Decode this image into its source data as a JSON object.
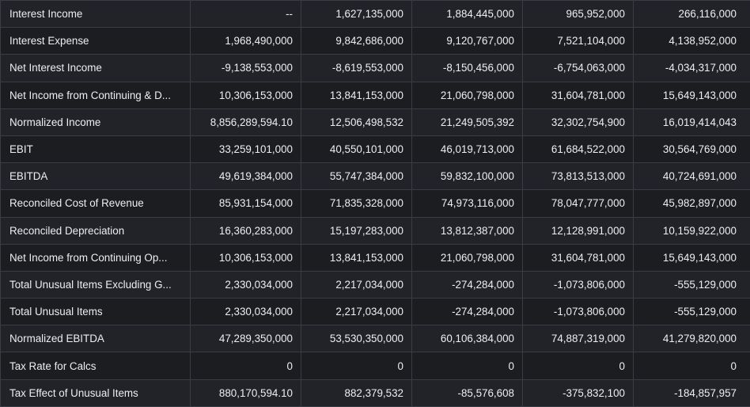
{
  "table": {
    "rows": [
      {
        "label": "Interest Income",
        "values": [
          "--",
          "1,627,135,000",
          "1,884,445,000",
          "965,952,000",
          "266,116,000"
        ]
      },
      {
        "label": "Interest Expense",
        "values": [
          "1,968,490,000",
          "9,842,686,000",
          "9,120,767,000",
          "7,521,104,000",
          "4,138,952,000"
        ]
      },
      {
        "label": "Net Interest Income",
        "values": [
          "-9,138,553,000",
          "-8,619,553,000",
          "-8,150,456,000",
          "-6,754,063,000",
          "-4,034,317,000"
        ]
      },
      {
        "label": "Net Income from Continuing & D...",
        "values": [
          "10,306,153,000",
          "13,841,153,000",
          "21,060,798,000",
          "31,604,781,000",
          "15,649,143,000"
        ]
      },
      {
        "label": "Normalized Income",
        "values": [
          "8,856,289,594.10",
          "12,506,498,532",
          "21,249,505,392",
          "32,302,754,900",
          "16,019,414,043"
        ]
      },
      {
        "label": "EBIT",
        "values": [
          "33,259,101,000",
          "40,550,101,000",
          "46,019,713,000",
          "61,684,522,000",
          "30,564,769,000"
        ]
      },
      {
        "label": "EBITDA",
        "values": [
          "49,619,384,000",
          "55,747,384,000",
          "59,832,100,000",
          "73,813,513,000",
          "40,724,691,000"
        ]
      },
      {
        "label": "Reconciled Cost of Revenue",
        "values": [
          "85,931,154,000",
          "71,835,328,000",
          "74,973,116,000",
          "78,047,777,000",
          "45,982,897,000"
        ]
      },
      {
        "label": "Reconciled Depreciation",
        "values": [
          "16,360,283,000",
          "15,197,283,000",
          "13,812,387,000",
          "12,128,991,000",
          "10,159,922,000"
        ]
      },
      {
        "label": "Net Income from Continuing Op...",
        "values": [
          "10,306,153,000",
          "13,841,153,000",
          "21,060,798,000",
          "31,604,781,000",
          "15,649,143,000"
        ]
      },
      {
        "label": "Total Unusual Items Excluding G...",
        "values": [
          "2,330,034,000",
          "2,217,034,000",
          "-274,284,000",
          "-1,073,806,000",
          "-555,129,000"
        ]
      },
      {
        "label": "Total Unusual Items",
        "values": [
          "2,330,034,000",
          "2,217,034,000",
          "-274,284,000",
          "-1,073,806,000",
          "-555,129,000"
        ]
      },
      {
        "label": "Normalized EBITDA",
        "values": [
          "47,289,350,000",
          "53,530,350,000",
          "60,106,384,000",
          "74,887,319,000",
          "41,279,820,000"
        ]
      },
      {
        "label": "Tax Rate for Calcs",
        "values": [
          "0",
          "0",
          "0",
          "0",
          "0"
        ]
      },
      {
        "label": "Tax Effect of Unusual Items",
        "values": [
          "880,170,594.10",
          "882,379,532",
          "-85,576,608",
          "-375,832,100",
          "-184,857,957"
        ]
      }
    ]
  },
  "colors": {
    "page_background": "#15171b",
    "row_odd": "#212328",
    "row_even": "#1b1d21",
    "grid_line": "#3a3d44",
    "text": "#eceef2"
  }
}
